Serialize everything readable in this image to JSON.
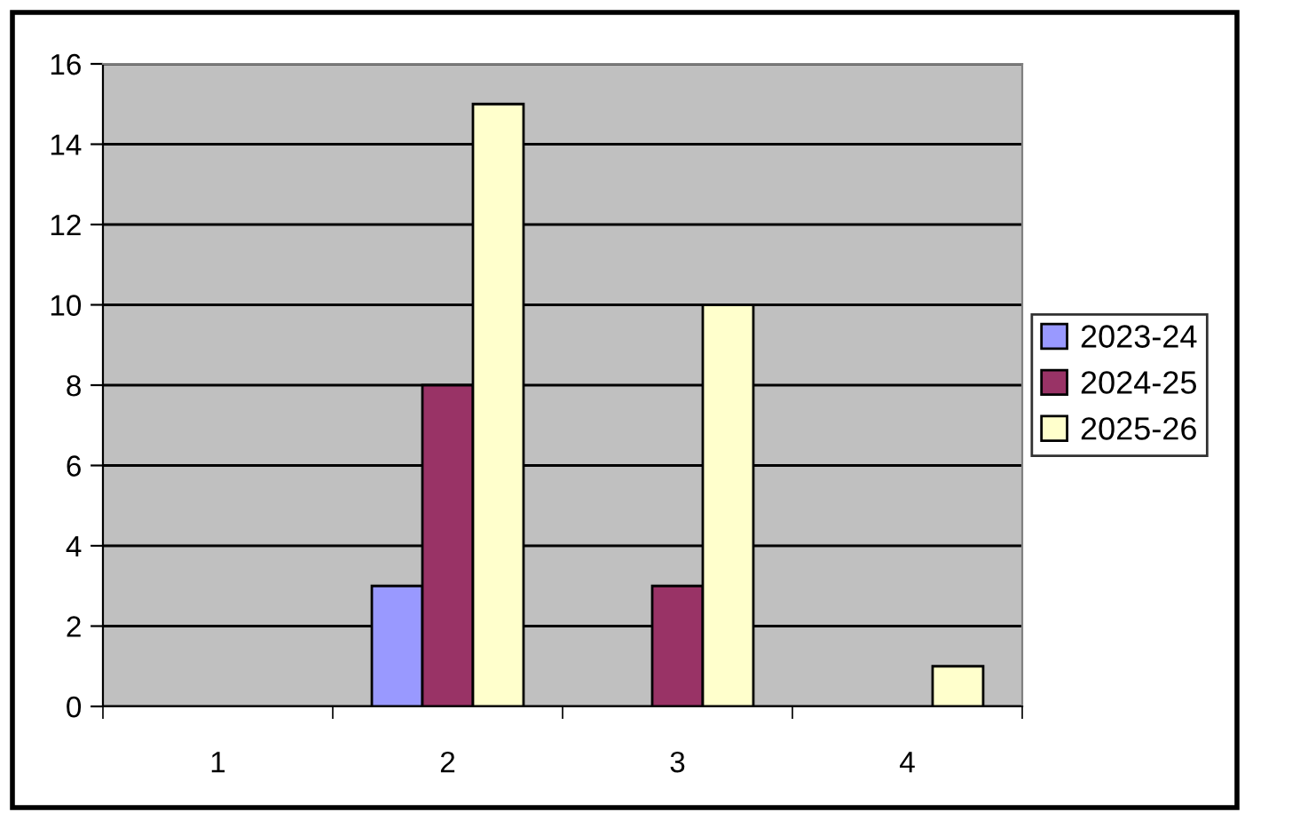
{
  "chart_data": {
    "type": "bar",
    "categories": [
      "1",
      "2",
      "3",
      "4"
    ],
    "series": [
      {
        "name": "2023-24",
        "color": "#9999ff",
        "values": [
          null,
          3,
          null,
          null
        ]
      },
      {
        "name": "2024-25",
        "color": "#993366",
        "values": [
          null,
          8,
          3,
          null
        ]
      },
      {
        "name": "2025-26",
        "color": "#ffffcc",
        "values": [
          null,
          15,
          10,
          1
        ]
      }
    ],
    "ylim": [
      0,
      16
    ],
    "yticks": [
      0,
      2,
      4,
      6,
      8,
      10,
      12,
      14,
      16
    ],
    "grid": "y",
    "legend": "right"
  }
}
